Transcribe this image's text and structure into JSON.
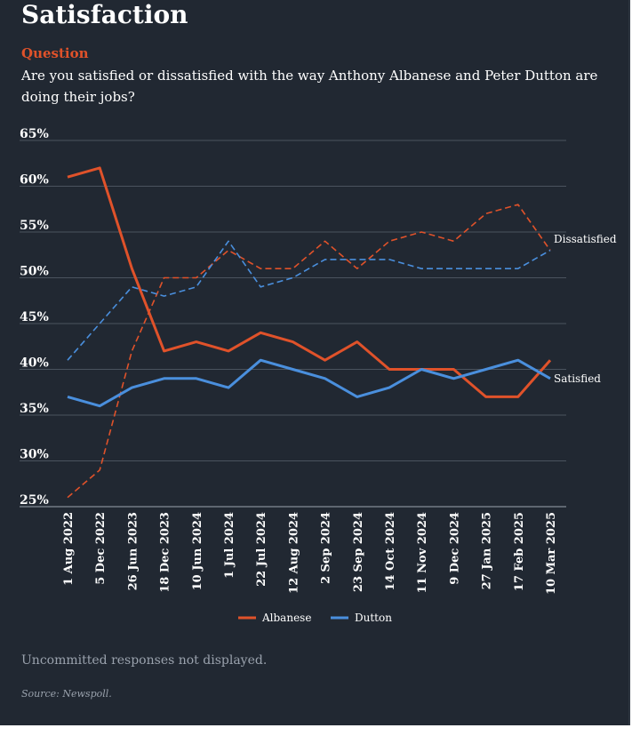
{
  "title": "Satisfaction",
  "question_label": "Question",
  "question_text": "Are you satisfied or dissatisfied with the way Anthony Albanese and Peter Dutton are doing their jobs?",
  "footnote": "Uncommitted responses not displayed.",
  "source": "Source: Newspoll.",
  "colors": {
    "albanese": "#e0522a",
    "dutton": "#4a8fdd",
    "background": "#212832"
  },
  "chart_data": {
    "type": "line",
    "categories": [
      "1 Aug 2022",
      "5 Dec 2022",
      "26 Jun 2023",
      "18 Dec 2023",
      "10 Jun 2024",
      "1 Jul 2024",
      "22 Jul 2024",
      "12 Aug 2024",
      "2 Sep 2024",
      "23 Sep 2024",
      "14 Oct 2024",
      "11 Nov 2024",
      "9 Dec 2024",
      "27 Jan 2025",
      "17 Feb 2025",
      "10 Mar 2025"
    ],
    "ylim": [
      25,
      65
    ],
    "yticks": [
      "25%",
      "30%",
      "35%",
      "40%",
      "45%",
      "50%",
      "55%",
      "60%",
      "65%"
    ],
    "grid": true,
    "legend": {
      "position": "bottom",
      "entries": [
        "Albanese",
        "Dutton"
      ]
    },
    "series_labels": {
      "dissatisfied": "Dissatisfied",
      "satisfied": "Satisfied"
    },
    "series": [
      {
        "name": "Albanese",
        "measure": "Satisfied",
        "style": "solid",
        "color": "#e0522a",
        "values": [
          61,
          62,
          51,
          42,
          43,
          42,
          44,
          43,
          41,
          43,
          40,
          40,
          40,
          37,
          37,
          41
        ]
      },
      {
        "name": "Albanese",
        "measure": "Dissatisfied",
        "style": "dashed",
        "color": "#e0522a",
        "values": [
          26,
          29,
          42,
          50,
          50,
          53,
          51,
          51,
          54,
          51,
          54,
          55,
          54,
          57,
          58,
          53
        ]
      },
      {
        "name": "Dutton",
        "measure": "Satisfied",
        "style": "solid",
        "color": "#4a8fdd",
        "values": [
          37,
          36,
          38,
          39,
          39,
          38,
          41,
          40,
          39,
          37,
          38,
          40,
          39,
          40,
          41,
          39
        ]
      },
      {
        "name": "Dutton",
        "measure": "Dissatisfied",
        "style": "dashed",
        "color": "#4a8fdd",
        "values": [
          41,
          45,
          49,
          48,
          49,
          54,
          49,
          50,
          52,
          52,
          52,
          51,
          51,
          51,
          51,
          53
        ]
      }
    ]
  }
}
